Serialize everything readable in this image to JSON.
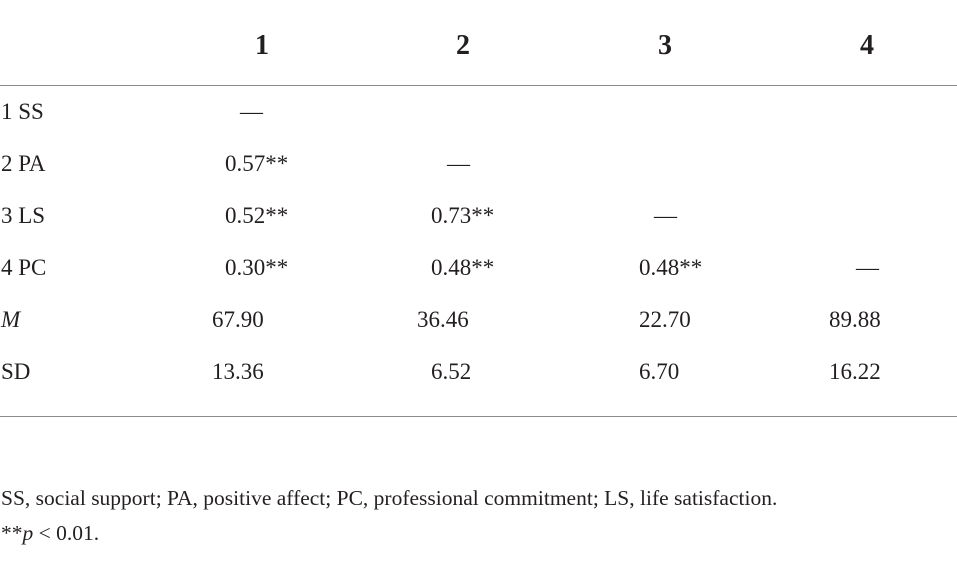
{
  "table": {
    "headers": [
      "1",
      "2",
      "3",
      "4"
    ],
    "rows": [
      {
        "label": "1 SS",
        "cells": [
          "—",
          "",
          "",
          ""
        ]
      },
      {
        "label": "2 PA",
        "cells": [
          "0.57**",
          "—",
          "",
          ""
        ]
      },
      {
        "label": "3 LS",
        "cells": [
          "0.52**",
          "0.73**",
          "—",
          ""
        ]
      },
      {
        "label": "4 PC",
        "cells": [
          "0.30**",
          "0.48**",
          "0.48**",
          "—"
        ]
      },
      {
        "label": "M",
        "cells": [
          "67.90",
          "36.46",
          "22.70",
          "89.88"
        ]
      },
      {
        "label": "SD",
        "cells": [
          "13.36",
          "6.52",
          "6.70",
          "16.22"
        ]
      }
    ]
  },
  "footnotes": {
    "abbreviations": "SS, social support; PA, positive affect; PC, professional commitment; LS, life satisfaction.",
    "significance_prefix": "**",
    "significance_p": "p",
    "significance_rest": " < 0.01."
  }
}
